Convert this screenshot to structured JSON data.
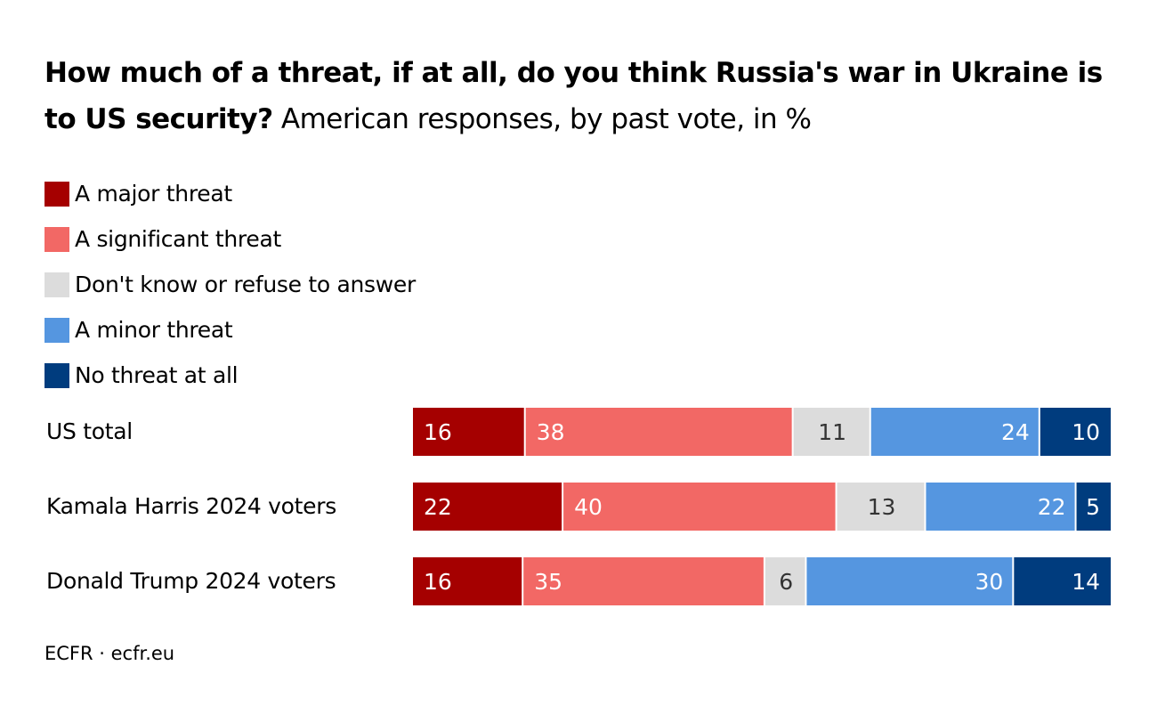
{
  "title_bold": "How much of a threat, if at all, do you think Russia's war in Ukraine is to US security?",
  "subtitle": "American responses, by past vote, in %",
  "footer": "ECFR · ecfr.eu",
  "chart_data": {
    "type": "bar",
    "orientation": "horizontal",
    "stacked": true,
    "categories": [
      "US total",
      "Kamala Harris 2024 voters",
      "Donald Trump 2024 voters"
    ],
    "series": [
      {
        "name": "A major threat",
        "color": "#a50000",
        "values": [
          16,
          22,
          16
        ]
      },
      {
        "name": "A significant threat",
        "color": "#f26865",
        "values": [
          38,
          40,
          35
        ]
      },
      {
        "name": "Don't know or refuse to answer",
        "color": "#dcdcdc",
        "values": [
          11,
          13,
          6
        ]
      },
      {
        "name": "A minor threat",
        "color": "#5596e0",
        "values": [
          24,
          22,
          30
        ]
      },
      {
        "name": "No threat at all",
        "color": "#003c7e",
        "values": [
          10,
          5,
          14
        ]
      }
    ],
    "legend_position": "top-left",
    "grid": false,
    "data_labels": true
  }
}
